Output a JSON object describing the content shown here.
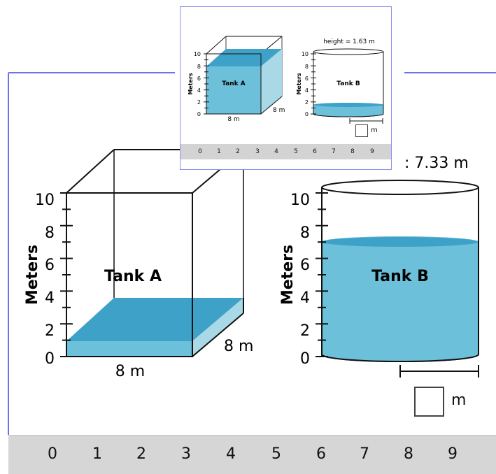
{
  "main": {
    "tank_a": {
      "label": "Tank A",
      "width_label": "8 m",
      "depth_label": "8 m",
      "water_height_m": 1
    },
    "tank_b": {
      "label": "Tank B",
      "height_partial": ": 7.33 m",
      "water_height_m": 7.33
    },
    "axis_title": "Meters",
    "ticks": [
      "10",
      "8",
      "6",
      "4",
      "2",
      "0"
    ],
    "answer_unit": "m",
    "answer_value": "",
    "keypad": [
      "0",
      "1",
      "2",
      "3",
      "4",
      "5",
      "6",
      "7",
      "8",
      "9"
    ]
  },
  "mini": {
    "tank_a": {
      "label": "Tank A",
      "width_label": "8 m",
      "depth_label": "8 m",
      "water_height_m": 8
    },
    "tank_b": {
      "label": "Tank B",
      "height_label": "height = 1.63 m",
      "water_height_m": 1.63
    },
    "axis_title": "Meters",
    "ticks": [
      "10",
      "8",
      "6",
      "4",
      "2",
      "0"
    ],
    "answer_unit": "m",
    "keypad": [
      "0",
      "1",
      "2",
      "3",
      "4",
      "5",
      "6",
      "7",
      "8",
      "9"
    ]
  },
  "colors": {
    "water_front": "#6cc0d9",
    "water_top": "#3ea2c8",
    "water_side": "#a9d8e6",
    "frame_blue": "#6d71ee",
    "keypad_bg": "#d6d6d6"
  }
}
